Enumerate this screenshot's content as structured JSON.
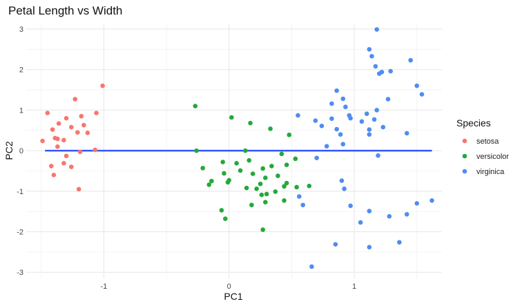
{
  "chart_data": {
    "type": "scatter",
    "title": "Petal Length vs Width",
    "xlabel": "PC1",
    "ylabel": "PC2",
    "xlim": [
      -1.62,
      1.7
    ],
    "ylim": [
      -3.15,
      3.12
    ],
    "x_ticks": [
      -1,
      0,
      1
    ],
    "y_ticks": [
      -3,
      -2,
      -1,
      0,
      1,
      2,
      3
    ],
    "grid": true,
    "legend": {
      "title": "Species",
      "position": "right"
    },
    "colors": {
      "setosa": "#f8766d",
      "versicolor": "#24a939",
      "virginica": "#4f8df0",
      "line": "#3355ff"
    },
    "fit_line": {
      "x": [
        -1.47,
        1.62
      ],
      "y": [
        0,
        0
      ]
    },
    "series": [
      {
        "name": "setosa",
        "points": [
          [
            -1.01,
            1.6
          ],
          [
            -1.23,
            1.27
          ],
          [
            -1.45,
            0.93
          ],
          [
            -1.06,
            0.93
          ],
          [
            -1.3,
            0.8
          ],
          [
            -1.18,
            0.85
          ],
          [
            -1.36,
            0.67
          ],
          [
            -1.26,
            0.58
          ],
          [
            -1.16,
            0.63
          ],
          [
            -1.41,
            0.52
          ],
          [
            -1.13,
            0.44
          ],
          [
            -1.21,
            0.45
          ],
          [
            -1.39,
            0.31
          ],
          [
            -1.37,
            0.29
          ],
          [
            -1.32,
            0.26
          ],
          [
            -1.49,
            0.24
          ],
          [
            -1.37,
            0.1
          ],
          [
            -1.07,
            0.02
          ],
          [
            -1.19,
            -0.03
          ],
          [
            -1.3,
            -0.13
          ],
          [
            -1.32,
            -0.31
          ],
          [
            -1.42,
            -0.38
          ],
          [
            -1.26,
            -0.4
          ],
          [
            -1.4,
            -0.6
          ],
          [
            -1.2,
            -0.95
          ]
        ]
      },
      {
        "name": "versicolor",
        "points": [
          [
            -0.27,
            1.1
          ],
          [
            0.02,
            0.82
          ],
          [
            0.17,
            0.68
          ],
          [
            0.33,
            0.54
          ],
          [
            0.48,
            0.39
          ],
          [
            -0.26,
            0.0
          ],
          [
            0.13,
            0.0
          ],
          [
            0.42,
            -0.08
          ],
          [
            0.53,
            -0.2
          ],
          [
            0.16,
            -0.24
          ],
          [
            -0.05,
            -0.28
          ],
          [
            0.34,
            -0.38
          ],
          [
            0.06,
            -0.31
          ],
          [
            0.46,
            -0.35
          ],
          [
            0.27,
            -0.44
          ],
          [
            -0.21,
            -0.43
          ],
          [
            0.09,
            -0.49
          ],
          [
            0.19,
            -0.57
          ],
          [
            -0.04,
            -0.56
          ],
          [
            0.39,
            -0.62
          ],
          [
            0.29,
            -0.67
          ],
          [
            0.0,
            -0.73
          ],
          [
            -0.14,
            -0.75
          ],
          [
            0.25,
            -0.82
          ],
          [
            0.46,
            -0.8
          ],
          [
            -0.01,
            -0.78
          ],
          [
            0.14,
            -0.92
          ],
          [
            0.64,
            -0.87
          ],
          [
            0.44,
            -0.88
          ],
          [
            -0.16,
            -0.84
          ],
          [
            0.22,
            -0.94
          ],
          [
            0.54,
            -0.9
          ],
          [
            0.37,
            -1.01
          ],
          [
            0.26,
            -1.09
          ],
          [
            0.29,
            -1.27
          ],
          [
            0.18,
            -1.34
          ],
          [
            0.44,
            -1.23
          ],
          [
            -0.06,
            -1.47
          ],
          [
            -0.03,
            -1.68
          ],
          [
            0.27,
            -1.95
          ],
          [
            0.3,
            -1.07
          ]
        ]
      },
      {
        "name": "virginica",
        "points": [
          [
            1.18,
            2.99
          ],
          [
            1.12,
            2.5
          ],
          [
            1.14,
            2.33
          ],
          [
            1.17,
            2.08
          ],
          [
            1.45,
            2.23
          ],
          [
            1.29,
            1.96
          ],
          [
            1.22,
            1.94
          ],
          [
            1.2,
            1.9
          ],
          [
            0.86,
            1.48
          ],
          [
            1.5,
            1.6
          ],
          [
            1.54,
            1.39
          ],
          [
            0.91,
            1.28
          ],
          [
            1.27,
            1.27
          ],
          [
            0.82,
            1.16
          ],
          [
            0.93,
            1.08
          ],
          [
            1.18,
            1.0
          ],
          [
            0.96,
            0.87
          ],
          [
            0.55,
            0.87
          ],
          [
            1.1,
            0.91
          ],
          [
            0.69,
            0.74
          ],
          [
            0.97,
            0.8
          ],
          [
            0.82,
            0.79
          ],
          [
            1.06,
            0.72
          ],
          [
            1.16,
            0.77
          ],
          [
            0.74,
            0.61
          ],
          [
            1.23,
            0.58
          ],
          [
            1.12,
            0.52
          ],
          [
            0.86,
            0.53
          ],
          [
            1.12,
            0.4
          ],
          [
            1.42,
            0.43
          ],
          [
            0.89,
            0.4
          ],
          [
            0.91,
            0.16
          ],
          [
            0.78,
            0.11
          ],
          [
            1.19,
            -0.12
          ],
          [
            0.7,
            -0.18
          ],
          [
            0.9,
            -0.74
          ],
          [
            0.56,
            -1.13
          ],
          [
            0.59,
            -1.34
          ],
          [
            0.92,
            -0.94
          ],
          [
            0.97,
            -1.36
          ],
          [
            1.5,
            -1.3
          ],
          [
            1.62,
            -1.23
          ],
          [
            1.12,
            -1.49
          ],
          [
            1.42,
            -1.57
          ],
          [
            1.28,
            -1.62
          ],
          [
            1.05,
            -1.77
          ],
          [
            0.85,
            -2.31
          ],
          [
            1.12,
            -2.38
          ],
          [
            1.36,
            -2.26
          ],
          [
            0.66,
            -2.86
          ]
        ]
      }
    ]
  }
}
